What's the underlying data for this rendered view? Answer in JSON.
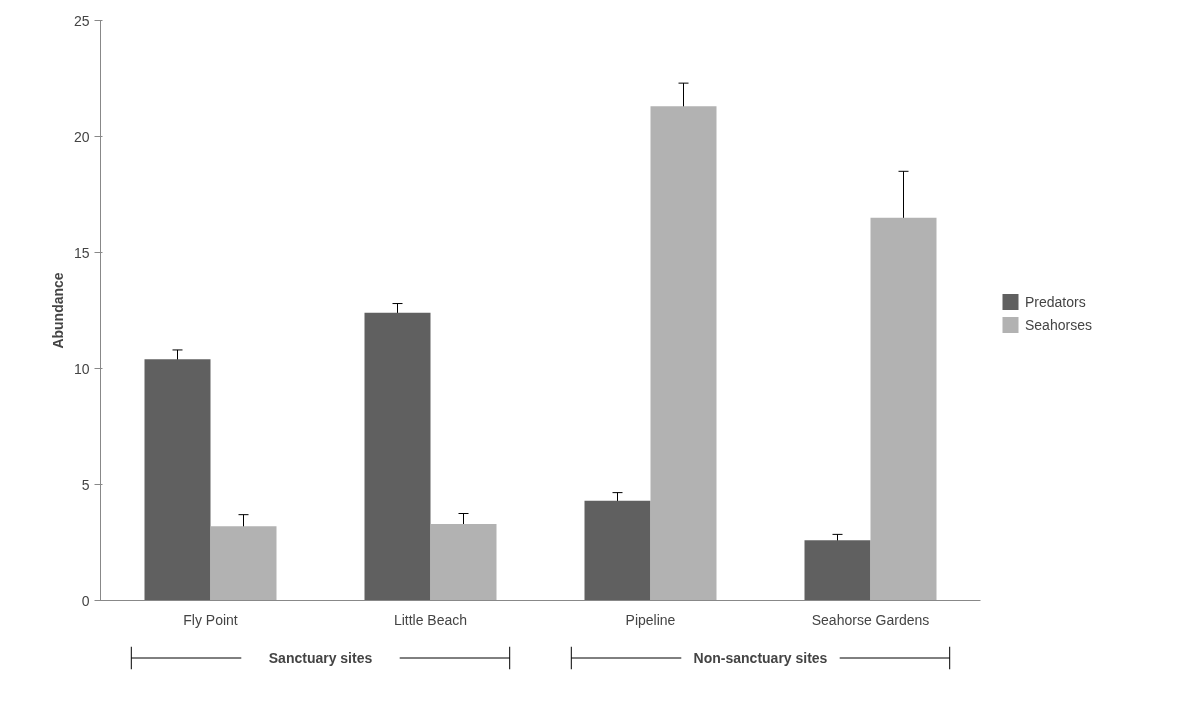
{
  "chart_data": {
    "type": "bar",
    "ylabel": "Abundance",
    "categories": [
      "Fly Point",
      "Little Beach",
      "Pipeline",
      "Seahorse Gardens"
    ],
    "series": [
      {
        "name": "Predators",
        "color": "#606060",
        "values": [
          10.4,
          12.4,
          4.3,
          2.6
        ],
        "errors": [
          0.4,
          0.4,
          0.35,
          0.25
        ]
      },
      {
        "name": "Seahorses",
        "color": "#b2b2b2",
        "values": [
          3.2,
          3.3,
          21.3,
          16.5
        ],
        "errors": [
          0.5,
          0.45,
          1.0,
          2.0
        ]
      }
    ],
    "ylim": [
      0,
      25
    ],
    "yticks": [
      0,
      5,
      10,
      15,
      20,
      25
    ],
    "grid": false,
    "legend": "right",
    "annotations": [
      "Sanctuary sites",
      "Non-sanctuary sites"
    ]
  }
}
